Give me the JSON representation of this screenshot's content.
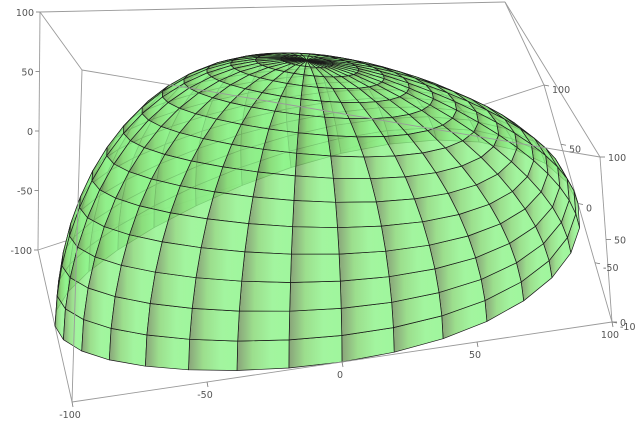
{
  "chart_data": {
    "type": "surface3d",
    "surface": "hemi-ellipsoid dome",
    "semi_axes": {
      "x": 100,
      "y": 100,
      "z": 100
    },
    "mesh": {
      "radial_lines": 32,
      "rings": 15
    },
    "xlim": [
      -100,
      100
    ],
    "ylim": [
      -100,
      100
    ],
    "zlim": [
      0,
      100
    ],
    "x_ticks": [
      "-100",
      "-50",
      "0",
      "50",
      "100"
    ],
    "y_ticks": [
      "-100",
      "-50",
      "0",
      "50",
      "100"
    ],
    "z_ticks": [
      "0",
      "50",
      "100"
    ],
    "box": true,
    "grid": false,
    "colors": {
      "surface": "#8ef38a",
      "mesh": "#1a1a1a",
      "box": "#9a9a9a"
    }
  }
}
